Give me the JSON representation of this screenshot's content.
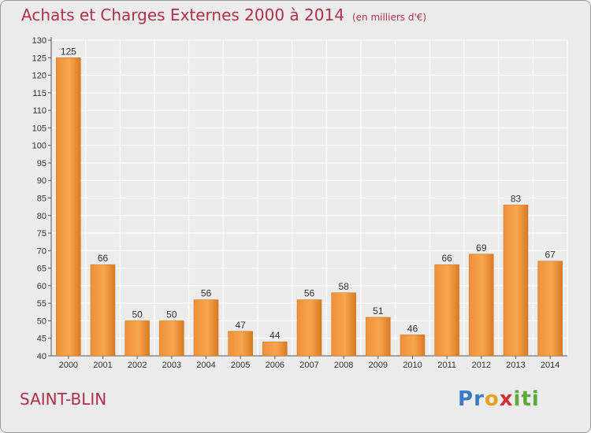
{
  "header": {
    "title": "Achats et Charges Externes 2000 à 2014",
    "subtitle": "(en milliers d'€)"
  },
  "footer": {
    "commune": "SAINT-BLIN",
    "logo_text": "Proxiti",
    "logo_letters": [
      "P",
      "r",
      "o",
      "x",
      "i",
      "t",
      "i"
    ],
    "logo_colors": [
      "#3a7cc4",
      "#3a7cc4",
      "#e8a020",
      "#d03030",
      "#5aab3a",
      "#5aab3a",
      "#5aab3a"
    ]
  },
  "colors": {
    "title": "#b0304a",
    "bar_light": "#f8a650",
    "bar_dark": "#d97a22",
    "axis": "#555555",
    "grid": "#ffffff",
    "plot_bg": "#ececec"
  },
  "chart_data": {
    "type": "bar",
    "title": "Achats et Charges Externes 2000 à 2014",
    "subtitle": "(en milliers d'€)",
    "xlabel": "",
    "ylabel": "",
    "categories": [
      "2000",
      "2001",
      "2002",
      "2003",
      "2004",
      "2005",
      "2006",
      "2007",
      "2008",
      "2009",
      "2010",
      "2011",
      "2012",
      "2013",
      "2014"
    ],
    "values": [
      125,
      66,
      50,
      50,
      56,
      47,
      44,
      56,
      58,
      51,
      46,
      66,
      69,
      83,
      67
    ],
    "ylim": [
      40,
      130
    ],
    "ytick_step": 5,
    "grid": true,
    "data_labels": true
  }
}
